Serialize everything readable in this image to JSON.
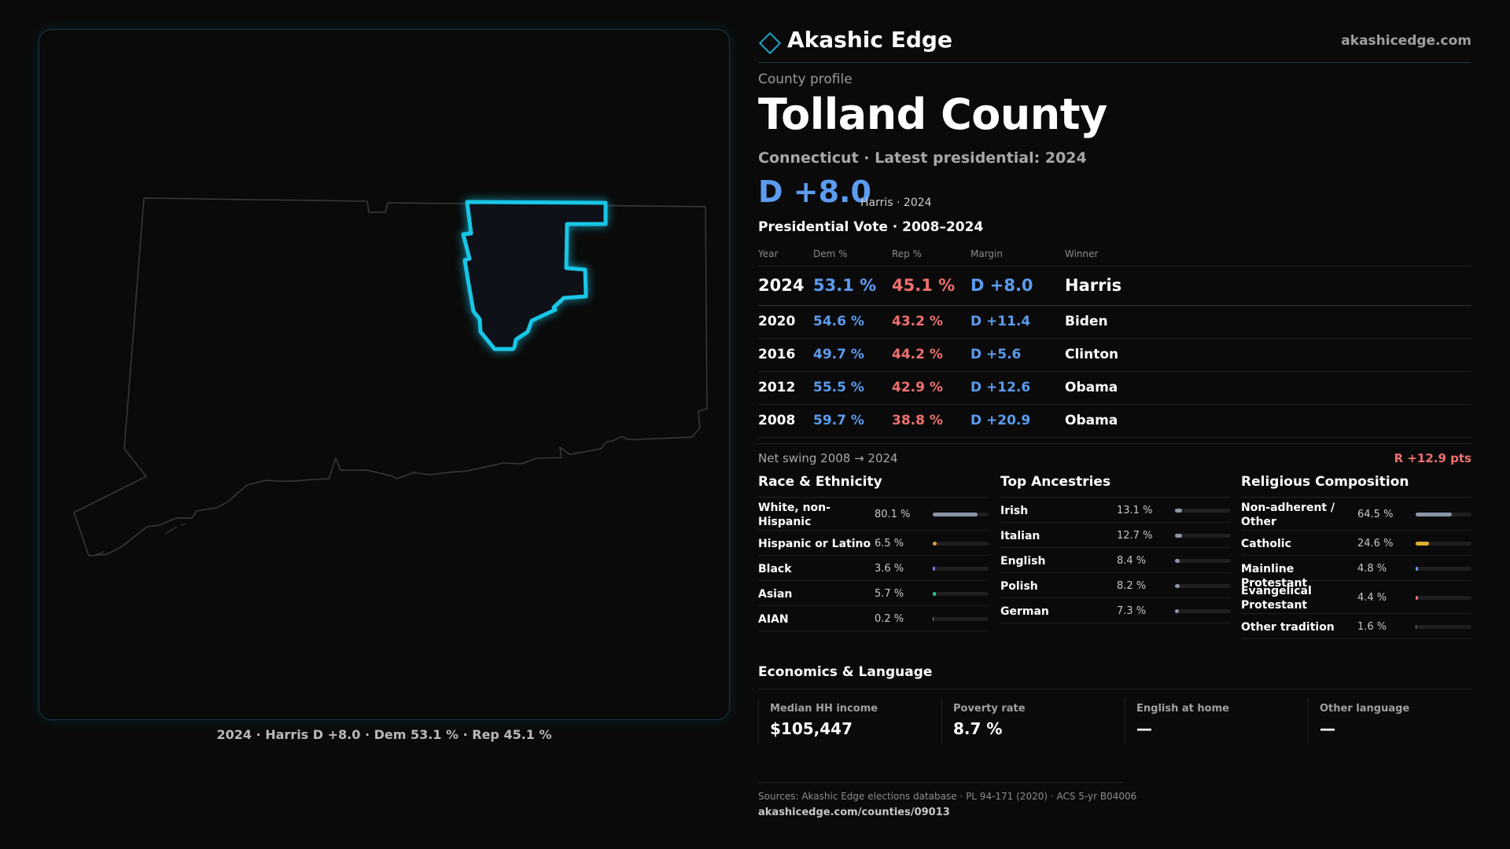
{
  "brand": {
    "name": "Akashic Edge",
    "url": "akashicedge.com"
  },
  "profile": {
    "eyebrow": "County profile",
    "county": "Tolland County",
    "subtitle": "Connecticut · Latest presidential: 2024",
    "margin": "D +8.0",
    "margin_note": "Harris · 2024"
  },
  "map": {
    "caption": "2024 · Harris D +8.0 · Dem 53.1 % · Rep 45.1 %",
    "highlight_color": "#19c6e6"
  },
  "votes": {
    "heading": "Presidential Vote · 2008–2024",
    "columns": [
      "Year",
      "Dem %",
      "Rep %",
      "Margin",
      "Winner"
    ],
    "rows": [
      {
        "year": "2024",
        "dem": "53.1 %",
        "rep": "45.1 %",
        "margin": "D +8.0",
        "winner": "Harris"
      },
      {
        "year": "2020",
        "dem": "54.6 %",
        "rep": "43.2 %",
        "margin": "D +11.4",
        "winner": "Biden"
      },
      {
        "year": "2016",
        "dem": "49.7 %",
        "rep": "44.2 %",
        "margin": "D +5.6",
        "winner": "Clinton"
      },
      {
        "year": "2012",
        "dem": "55.5 %",
        "rep": "42.9 %",
        "margin": "D +12.6",
        "winner": "Obama"
      },
      {
        "year": "2008",
        "dem": "59.7 %",
        "rep": "38.8 %",
        "margin": "D +20.9",
        "winner": "Obama"
      }
    ],
    "swing_label": "Net swing 2008 → 2024",
    "swing_value": "R +12.9 pts"
  },
  "race": {
    "heading": "Race & Ethnicity",
    "items": [
      {
        "label": "White, non-Hispanic",
        "value": "80.1 %",
        "pct": 80.1,
        "color": "#8a96a8"
      },
      {
        "label": "Hispanic or Latino",
        "value": "6.5 %",
        "pct": 6.5,
        "color": "#e0a030"
      },
      {
        "label": "Black",
        "value": "3.6 %",
        "pct": 3.6,
        "color": "#7a7ae0"
      },
      {
        "label": "Asian",
        "value": "5.7 %",
        "pct": 5.7,
        "color": "#30c090"
      },
      {
        "label": "AIAN",
        "value": "0.2 %",
        "pct": 0.2,
        "color": "#8a8a8a"
      }
    ]
  },
  "ancestry": {
    "heading": "Top Ancestries",
    "items": [
      {
        "label": "Irish",
        "value": "13.1 %",
        "pct": 13.1,
        "color": "#8a96a8"
      },
      {
        "label": "Italian",
        "value": "12.7 %",
        "pct": 12.7,
        "color": "#8a96a8"
      },
      {
        "label": "English",
        "value": "8.4 %",
        "pct": 8.4,
        "color": "#8a96a8"
      },
      {
        "label": "Polish",
        "value": "8.2 %",
        "pct": 8.2,
        "color": "#8a96a8"
      },
      {
        "label": "German",
        "value": "7.3 %",
        "pct": 7.3,
        "color": "#8a96a8"
      }
    ]
  },
  "religion": {
    "heading": "Religious Composition",
    "items": [
      {
        "label": "Non-adherent / Other",
        "value": "64.5 %",
        "pct": 64.5,
        "color": "#8a96a8"
      },
      {
        "label": "Catholic",
        "value": "24.6 %",
        "pct": 24.6,
        "color": "#e0b030"
      },
      {
        "label": "Mainline Protestant",
        "value": "4.8 %",
        "pct": 4.8,
        "color": "#5b9cf0"
      },
      {
        "label": "Evangelical Protestant",
        "value": "4.4 %",
        "pct": 4.4,
        "color": "#f07070"
      },
      {
        "label": "Other tradition",
        "value": "1.6 %",
        "pct": 1.6,
        "color": "#8a8a8a"
      }
    ]
  },
  "economics": {
    "heading": "Economics & Language",
    "cells": [
      {
        "label": "Median HH income",
        "value": "$105,447"
      },
      {
        "label": "Poverty rate",
        "value": "8.7 %"
      },
      {
        "label": "English at home",
        "value": "—"
      },
      {
        "label": "Other language",
        "value": "—"
      }
    ]
  },
  "sources": {
    "text": "Sources: Akashic Edge elections database · PL 94-171 (2020) · ACS 5-yr B04006",
    "url": "akashicedge.com/counties/09013"
  }
}
